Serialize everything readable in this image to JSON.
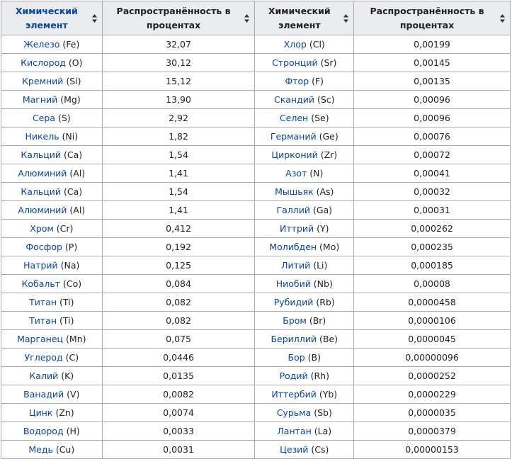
{
  "table": {
    "headers": [
      {
        "label": "Химический элемент"
      },
      {
        "label": "Распространённость в процентах"
      },
      {
        "label": "Химический элемент"
      },
      {
        "label": "Распространённость в процентах"
      }
    ],
    "rows": [
      {
        "el1": "Железо",
        "sym1": " (Fe)",
        "val1": "32,07",
        "el2": "Хлор",
        "sym2": " (Cl)",
        "val2": "0,00199"
      },
      {
        "el1": "Кислород",
        "sym1": " (O)",
        "val1": "30,12",
        "el2": "Стронций",
        "sym2": " (Sr)",
        "val2": "0,00145"
      },
      {
        "el1": "Кремний",
        "sym1": " (Si)",
        "val1": "15,12",
        "el2": "Фтор",
        "sym2": " (F)",
        "val2": "0,00135"
      },
      {
        "el1": "Магний",
        "sym1": " (Mg)",
        "val1": "13,90",
        "el2": "Скандий",
        "sym2": " (Sc)",
        "val2": "0,00096"
      },
      {
        "el1": "Сера",
        "sym1": " (S)",
        "val1": "2,92",
        "el2": "Селен",
        "sym2": " (Se)",
        "val2": "0,00096"
      },
      {
        "el1": "Никель",
        "sym1": " (Ni)",
        "val1": "1,82",
        "el2": "Германий",
        "sym2": " (Ge)",
        "val2": "0,00076"
      },
      {
        "el1": "Кальций",
        "sym1": " (Ca)",
        "val1": "1,54",
        "el2": "Цирконий",
        "sym2": " (Zr)",
        "val2": "0,00072"
      },
      {
        "el1": "Алюминий",
        "sym1": " (Al)",
        "val1": "1,41",
        "el2": "Азот",
        "sym2": " (N)",
        "val2": "0,00041"
      },
      {
        "el1": "Кальций",
        "sym1": " (Ca)",
        "val1": "1,54",
        "el2": "Мышьяк",
        "sym2": " (As)",
        "val2": "0,00032"
      },
      {
        "el1": "Алюминий",
        "sym1": " (Al)",
        "val1": "1,41",
        "el2": "Галлий",
        "sym2": " (Ga)",
        "val2": "0,00031"
      },
      {
        "el1": "Хром",
        "sym1": " (Cr)",
        "val1": "0,412",
        "el2": "Иттрий",
        "sym2": " (Y)",
        "val2": "0,000262"
      },
      {
        "el1": "Фосфор",
        "sym1": " (P)",
        "val1": "0,192",
        "el2": "Молибден",
        "sym2": " (Mo)",
        "val2": "0,000235"
      },
      {
        "el1": "Натрий",
        "sym1": " (Na)",
        "val1": "0,125",
        "el2": "Литий",
        "sym2": " (Li)",
        "val2": "0,000185"
      },
      {
        "el1": "Кобальт",
        "sym1": " (Co)",
        "val1": "0,084",
        "el2": "Ниобий",
        "sym2": " (Nb)",
        "val2": "0,00008"
      },
      {
        "el1": "Титан",
        "sym1": " (Ti)",
        "val1": "0,082",
        "el2": "Рубидий",
        "sym2": " (Rb)",
        "val2": "0,0000458"
      },
      {
        "el1": "Титан",
        "sym1": " (Ti)",
        "val1": "0,082",
        "el2": "Бром",
        "sym2": " (Br)",
        "val2": "0,0000106"
      },
      {
        "el1": "Марганец",
        "sym1": " (Mn)",
        "val1": "0,075",
        "el2": "Бериллий",
        "sym2": " (Be)",
        "val2": "0,0000045"
      },
      {
        "el1": "Углерод",
        "sym1": " (C)",
        "val1": "0,0446",
        "el2": "Бор",
        "sym2": " (B)",
        "val2": "0,00000096"
      },
      {
        "el1": "Калий",
        "sym1": " (K)",
        "val1": "0,0135",
        "el2": "Родий",
        "sym2": " (Rh)",
        "val2": "0,0000252"
      },
      {
        "el1": "Ванадий",
        "sym1": " (V)",
        "val1": "0,0082",
        "el2": "Иттербий",
        "sym2": " (Yb)",
        "val2": "0,0000229"
      },
      {
        "el1": "Цинк",
        "sym1": " (Zn)",
        "val1": "0,0074",
        "el2": "Сурьма",
        "sym2": " (Sb)",
        "val2": "0,0000035"
      },
      {
        "el1": "Водород",
        "sym1": " (H)",
        "val1": "0,0033",
        "el2": "Лантан",
        "sym2": " (La)",
        "val2": "0,0000379"
      },
      {
        "el1": "Медь",
        "sym1": " (Cu)",
        "val1": "0,0031",
        "el2": "Цезий",
        "sym2": " (Cs)",
        "val2": "0,00000153"
      }
    ]
  },
  "icons": {
    "sort": "sort-updown-icon"
  },
  "colors": {
    "link": "#0645ad",
    "header_bg": "#eaecf0",
    "border": "#aaaaaa"
  }
}
